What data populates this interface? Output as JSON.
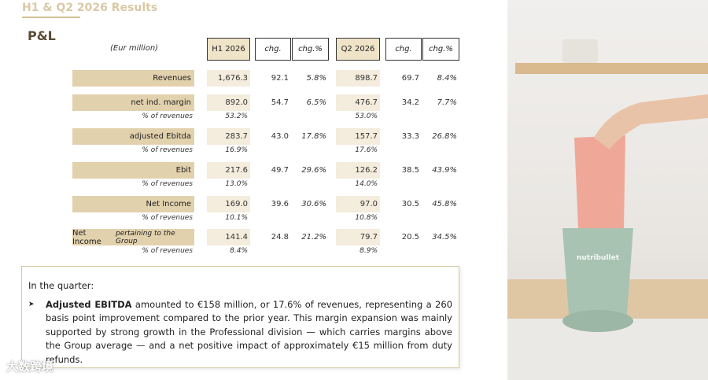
{
  "header": {
    "title": "H1 & Q2 2026 Results"
  },
  "section_title": "P&L",
  "table": {
    "unit_label": "(Eur million)",
    "columns": [
      "H1 2026",
      "chg.",
      "chg.%",
      "Q2 2026",
      "chg.",
      "chg.%"
    ],
    "rows": [
      {
        "label": "Revenues",
        "cells": [
          "1,676.3",
          "92.1",
          "5.8%",
          "898.7",
          "69.7",
          "8.4%"
        ]
      },
      {
        "label": "net ind. margin",
        "cells": [
          "892.0",
          "54.7",
          "6.5%",
          "476.7",
          "34.2",
          "7.7%"
        ],
        "sub_label": "% of revenues",
        "sub_cells": [
          "53.2%",
          "53.0%"
        ]
      },
      {
        "label": "adjusted Ebitda",
        "cells": [
          "283.7",
          "43.0",
          "17.8%",
          "157.7",
          "33.3",
          "26.8%"
        ],
        "sub_label": "% of revenues",
        "sub_cells": [
          "16.9%",
          "17.6%"
        ]
      },
      {
        "label": "Ebit",
        "cells": [
          "217.6",
          "49.7",
          "29.6%",
          "126.2",
          "38.5",
          "43.9%"
        ],
        "sub_label": "% of revenues",
        "sub_cells": [
          "13.0%",
          "14.0%"
        ]
      },
      {
        "label": "Net Income",
        "cells": [
          "169.0",
          "39.6",
          "30.6%",
          "97.0",
          "30.5",
          "45.8%"
        ],
        "sub_label": "% of revenues",
        "sub_cells": [
          "10.1%",
          "10.8%"
        ]
      },
      {
        "label": "Net Income",
        "label_italic": "pertaining to the Group",
        "cells": [
          "141.4",
          "24.8",
          "21.2%",
          "79.7",
          "20.5",
          "34.5%"
        ],
        "sub_label": "% of revenues",
        "sub_cells": [
          "8.4%",
          "8.9%"
        ]
      }
    ]
  },
  "note": {
    "heading": "In the quarter:",
    "bullet_lead": "Adjusted EBITDA",
    "bullet_text": "amounted to €158 million, or 17.6% of revenues, representing a 260 basis point improvement compared to the prior year. This margin expansion was mainly supported by strong growth in the Professional division — which carries margins above the Group average — and a net positive impact of approximately €15 million from duty refunds."
  },
  "photo_brand": "nutribullet",
  "watermark": "大数跨境"
}
